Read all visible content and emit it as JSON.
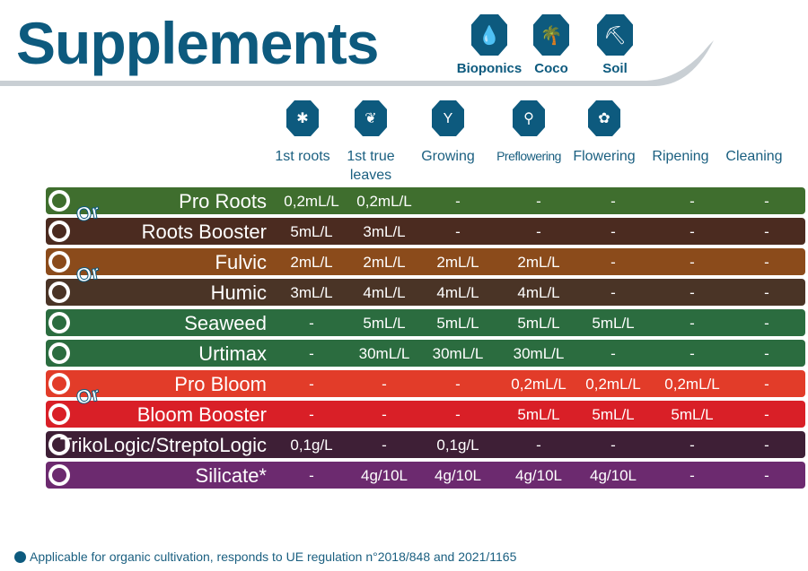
{
  "title": "Supplements",
  "substrates": [
    {
      "label": "Bioponics",
      "icon": "hands-drop-icon",
      "glyph": "💧"
    },
    {
      "label": "Coco",
      "icon": "palm-tree-icon",
      "glyph": "🌴"
    },
    {
      "label": "Soil",
      "icon": "shovel-icon",
      "glyph": "⛏"
    }
  ],
  "stages": [
    {
      "label": "1st roots",
      "icon": "roots-icon",
      "glyph": "✱"
    },
    {
      "label": "1st true leaves",
      "icon": "leaf-icon",
      "glyph": "❦"
    },
    {
      "label": "Growing",
      "icon": "sprout-icon",
      "glyph": "Y"
    },
    {
      "label": "Preflowering",
      "icon": "bud-icon",
      "glyph": "⚲"
    },
    {
      "label": "Flowering",
      "icon": "flower-icon",
      "glyph": "✿"
    },
    {
      "label": "Ripening",
      "icon": "",
      "glyph": ""
    },
    {
      "label": "Cleaning",
      "icon": "",
      "glyph": ""
    }
  ],
  "or_label": "Or",
  "products": [
    {
      "name": "Pro Roots",
      "color": "#3f6e2e",
      "values": [
        "0,2mL/L",
        "0,2mL/L",
        "-",
        "-",
        "-",
        "-",
        "-"
      ]
    },
    {
      "name": "Roots Booster",
      "color": "#4b2b20",
      "values": [
        "5mL/L",
        "3mL/L",
        "-",
        "-",
        "-",
        "-",
        "-"
      ]
    },
    {
      "name": "Fulvic",
      "color": "#8b4b1b",
      "values": [
        "2mL/L",
        "2mL/L",
        "2mL/L",
        "2mL/L",
        "-",
        "-",
        "-"
      ]
    },
    {
      "name": "Humic",
      "color": "#4a3426",
      "values": [
        "3mL/L",
        "4mL/L",
        "4mL/L",
        "4mL/L",
        "-",
        "-",
        "-"
      ]
    },
    {
      "name": "Seaweed",
      "color": "#2b6c3f",
      "values": [
        "-",
        "5mL/L",
        "5mL/L",
        "5mL/L",
        "5mL/L",
        "-",
        "-"
      ]
    },
    {
      "name": "Urtimax",
      "color": "#2b6c3f",
      "values": [
        "-",
        "30mL/L",
        "30mL/L",
        "30mL/L",
        "-",
        "-",
        "-"
      ]
    },
    {
      "name": "Pro Bloom",
      "color": "#e23c29",
      "values": [
        "-",
        "-",
        "-",
        "0,2mL/L",
        "0,2mL/L",
        "0,2mL/L",
        "-"
      ]
    },
    {
      "name": "Bloom Booster",
      "color": "#d91f27",
      "values": [
        "-",
        "-",
        "-",
        "5mL/L",
        "5mL/L",
        "5mL/L",
        "-"
      ]
    },
    {
      "name": "TrikoLogic/StreptoLogic",
      "color": "#3e1f36",
      "values": [
        "0,1g/L",
        "-",
        "0,1g/L",
        "-",
        "-",
        "-",
        "-"
      ]
    },
    {
      "name": "Silicate*",
      "color": "#6c2a6f",
      "values": [
        "-",
        "4g/10L",
        "4g/10L",
        "4g/10L",
        "4g/10L",
        "-",
        "-"
      ]
    }
  ],
  "footer": "Applicable for organic cultivation, responds to UE regulation n°2018/848 and 2021/1165"
}
